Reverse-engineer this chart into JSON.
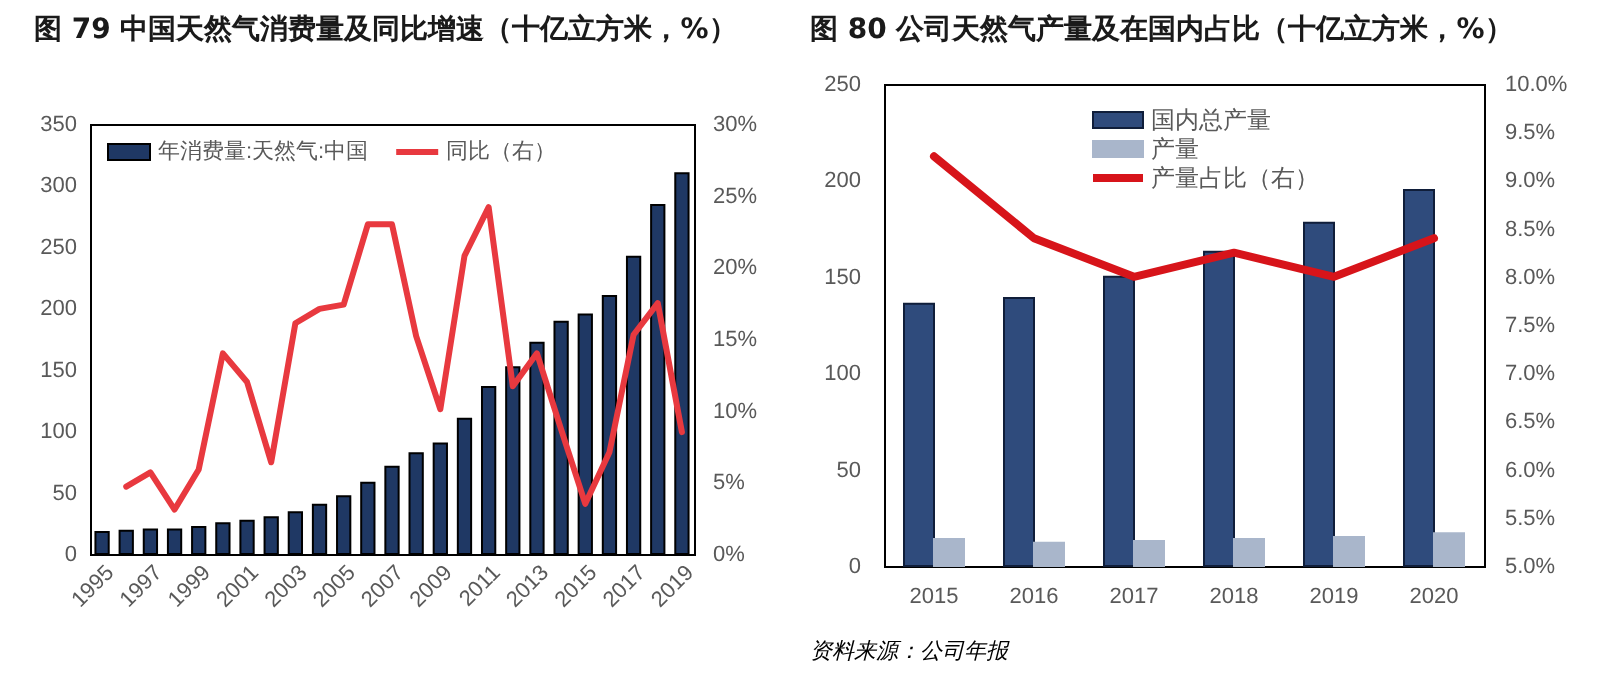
{
  "chart_data": [
    {
      "type": "bar",
      "title": "图 79 中国天然气消费量及同比增速（十亿立方米，%）",
      "categories": [
        "1995",
        null,
        "1997",
        null,
        "1999",
        null,
        "2001",
        null,
        "2003",
        null,
        "2005",
        null,
        "2007",
        null,
        "2009",
        null,
        "2011",
        null,
        "2013",
        null,
        "2015",
        null,
        "2017",
        null,
        "2019"
      ],
      "series": [
        {
          "name": "年消费量:天然气:中国",
          "color": "#1f3864",
          "values": [
            18,
            19,
            20,
            20,
            22,
            25,
            27,
            30,
            34,
            40,
            47,
            58,
            71,
            82,
            90,
            110,
            136,
            152,
            172,
            189,
            195,
            210,
            242,
            284,
            310
          ]
        },
        {
          "name": "同比（右）",
          "type": "line",
          "axis": "y2",
          "color": "#e8393f",
          "values": [
            null,
            4.7,
            5.7,
            3.1,
            5.9,
            14.0,
            12.0,
            6.4,
            16.1,
            17.1,
            17.4,
            23.0,
            23.0,
            15.2,
            10.1,
            20.8,
            24.2,
            11.7,
            14.0,
            8.7,
            3.5,
            7.1,
            15.3,
            17.5,
            8.5
          ]
        }
      ],
      "ylim": [
        0,
        350
      ],
      "yticks": [
        0,
        50,
        100,
        150,
        200,
        250,
        300,
        350
      ],
      "y2lim": [
        0,
        30
      ],
      "y2ticks": [
        {
          "value": 0,
          "label": "0%"
        },
        {
          "value": 5,
          "label": "5%"
        },
        {
          "value": 10,
          "label": "10%"
        },
        {
          "value": 15,
          "label": "15%"
        },
        {
          "value": 20,
          "label": "20%"
        },
        {
          "value": 25,
          "label": "25%"
        },
        {
          "value": 30,
          "label": "30%"
        }
      ],
      "legend": "top left"
    },
    {
      "type": "bar",
      "title": "图 80 公司天然气产量及在国内占比（十亿立方米，%）",
      "categories": [
        "2015",
        "2016",
        "2017",
        "2018",
        "2019",
        "2020"
      ],
      "series": [
        {
          "name": "国内总产量",
          "color": "#2f4b7c",
          "values": [
            136,
            139,
            150,
            163,
            178,
            195
          ]
        },
        {
          "name": "产量",
          "color": "#a9b6cb",
          "values": [
            14,
            12,
            13,
            14,
            15,
            17
          ]
        },
        {
          "name": "产量占比（右）",
          "type": "line",
          "axis": "y2",
          "color": "#d7141a",
          "values": [
            9.25,
            8.4,
            8.0,
            8.25,
            8.0,
            8.4
          ]
        }
      ],
      "ylim": [
        0,
        250
      ],
      "yticks": [
        0,
        50,
        100,
        150,
        200,
        250
      ],
      "y2lim": [
        5,
        10
      ],
      "y2ticks": [
        {
          "value": 5,
          "label": "5.0%"
        },
        {
          "value": 5.5,
          "label": "5.5%"
        },
        {
          "value": 6,
          "label": "6.0%"
        },
        {
          "value": 6.5,
          "label": "6.5%"
        },
        {
          "value": 7,
          "label": "7.0%"
        },
        {
          "value": 7.5,
          "label": "7.5%"
        },
        {
          "value": 8,
          "label": "8.0%"
        },
        {
          "value": 8.5,
          "label": "8.5%"
        },
        {
          "value": 9,
          "label": "9.0%"
        },
        {
          "value": 9.5,
          "label": "9.5%"
        },
        {
          "value": 10,
          "label": "10.0%"
        }
      ],
      "legend": "top",
      "annotations": [
        "资料来源：公司年报"
      ]
    }
  ]
}
